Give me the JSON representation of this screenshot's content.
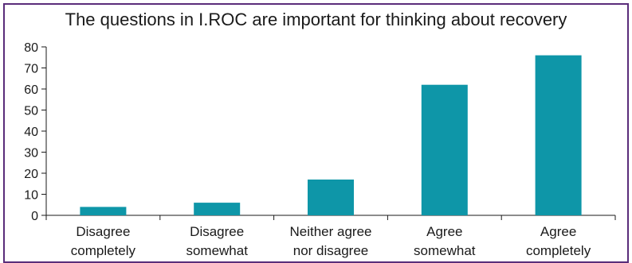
{
  "chart_data": {
    "type": "bar",
    "title": "The questions in I.ROC are important for thinking about recovery",
    "categories": [
      [
        "Disagree",
        "completely"
      ],
      [
        "Disagree",
        "somewhat"
      ],
      [
        "Neither agree",
        "nor disagree"
      ],
      [
        "Agree",
        "somewhat"
      ],
      [
        "Agree",
        "completely"
      ]
    ],
    "values": [
      4,
      6,
      17,
      62,
      76
    ],
    "ylim": [
      0,
      80
    ],
    "yticks": [
      0,
      10,
      20,
      30,
      40,
      50,
      60,
      70,
      80
    ],
    "xlabel": "",
    "ylabel": "",
    "grid": false,
    "colors": {
      "bar": "#0e96a8",
      "axis": "#1a1a1a",
      "border": "#5a2d7a"
    }
  }
}
